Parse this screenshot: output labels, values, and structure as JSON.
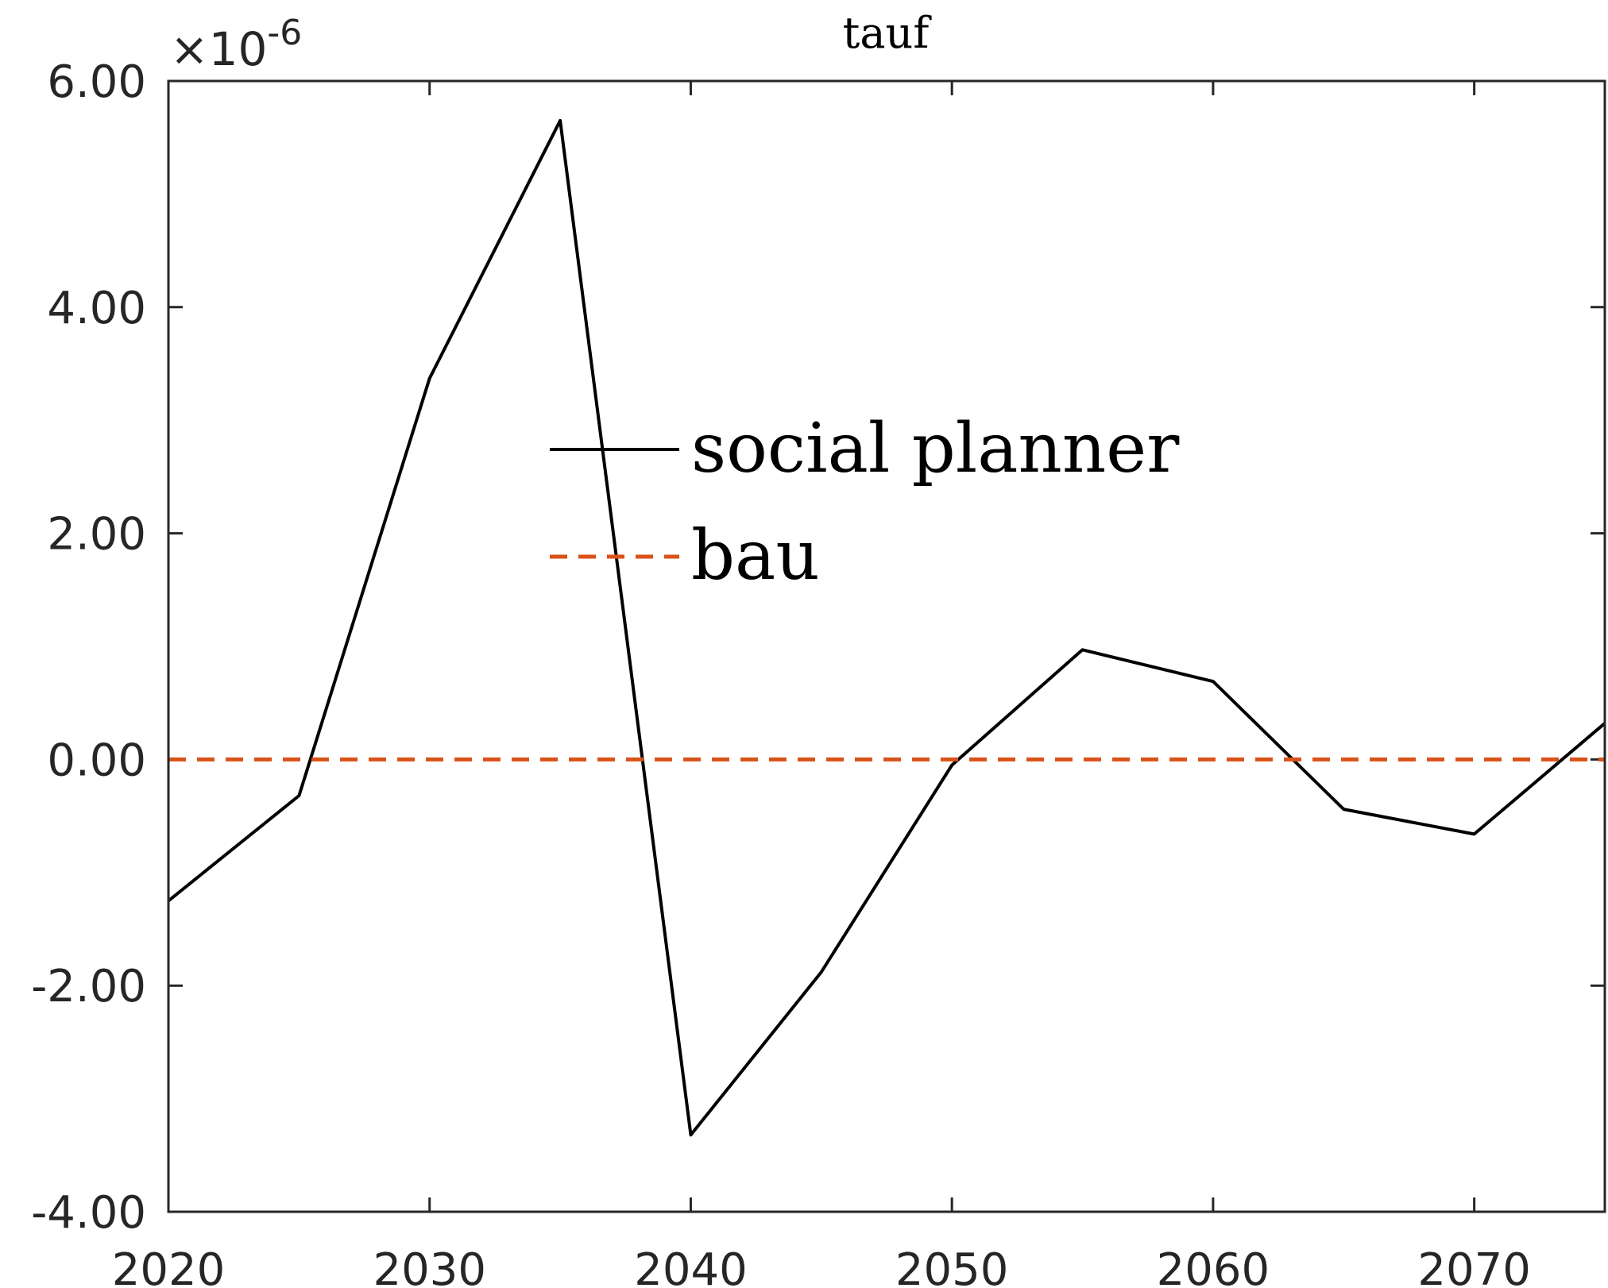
{
  "chart_data": {
    "type": "line",
    "title": "tauf",
    "xlabel": "",
    "ylabel": "",
    "y_exponent_label": {
      "base": "×10",
      "power": "-6"
    },
    "xlim": [
      2020,
      2075
    ],
    "ylim": [
      -4.0,
      6.0
    ],
    "x_ticks": [
      2020,
      2030,
      2040,
      2050,
      2060,
      2070
    ],
    "x_tick_labels": [
      "2020",
      "2030",
      "2040",
      "2050",
      "2060",
      "2070"
    ],
    "y_ticks": [
      -4,
      -2,
      0,
      2,
      4,
      6
    ],
    "y_tick_labels": [
      "-4.00",
      "-2.00",
      "0.00",
      "2.00",
      "4.00",
      "6.00"
    ],
    "grid": false,
    "legend_position": "center",
    "series": [
      {
        "name": "social planner",
        "color": "#000000",
        "line_style": "solid",
        "x": [
          2020,
          2025,
          2030,
          2035,
          2040,
          2045,
          2050,
          2055,
          2060,
          2065,
          2070,
          2075
        ],
        "y": [
          -1.25,
          -0.32,
          3.37,
          5.65,
          -3.32,
          -1.88,
          -0.05,
          0.97,
          0.69,
          -0.44,
          -0.66,
          0.32
        ]
      },
      {
        "name": "bau",
        "color": "#D95319",
        "line_style": "dashed",
        "x": [
          2020,
          2075
        ],
        "y": [
          0.0,
          0.0
        ]
      }
    ]
  }
}
